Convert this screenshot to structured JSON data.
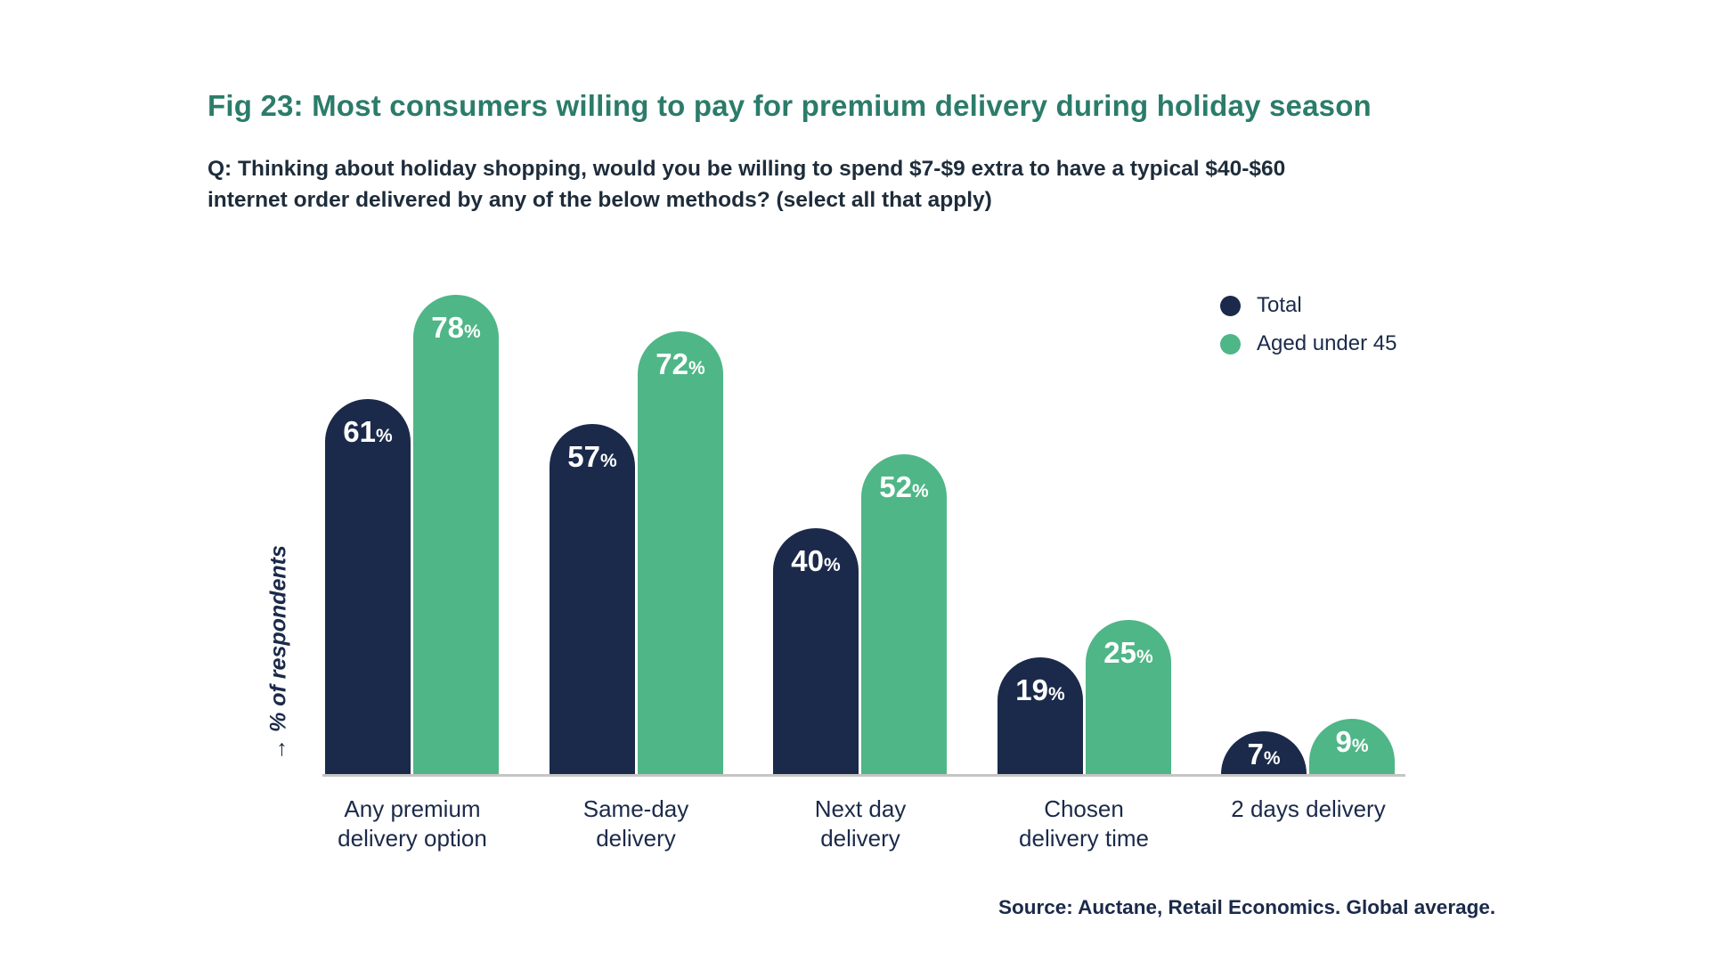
{
  "figure": {
    "title": "Fig 23: Most consumers willing to pay for premium delivery during holiday season",
    "question": {
      "line1": "Q: Thinking about holiday shopping, would you be willing to spend $7-$9 extra to have a typical $40-$60",
      "line2": "internet order delivered by any of the below methods? (select all that apply)"
    },
    "y_axis_label": "→ % of respondents",
    "source": "Source: Auctane, Retail Economics. Global average."
  },
  "legend": {
    "items": [
      {
        "label": "Total",
        "color": "#1b2a4a"
      },
      {
        "label": "Aged under 45",
        "color": "#4fb687"
      }
    ]
  },
  "colors": {
    "background": "#ffffff",
    "title": "#2b7c6a",
    "text": "#1e2c3a",
    "navy": "#1b2a4a",
    "green": "#4fb687",
    "axis_line": "#c5c5c5",
    "value_label": "#ffffff"
  },
  "chart_data": {
    "type": "bar",
    "title": "Fig 23: Most consumers willing to pay for premium delivery during holiday season",
    "subtitle": "Q: Thinking about holiday shopping, would you be willing to spend $7-$9 extra to have a typical $40-$60 internet order delivered by any of the below methods? (select all that apply)",
    "categories": [
      "Any premium delivery option",
      "Same-day delivery",
      "Next day delivery",
      "Chosen delivery time",
      "2 days delivery"
    ],
    "category_lines": [
      [
        "Any premium",
        "delivery option"
      ],
      [
        "Same-day",
        "delivery"
      ],
      [
        "Next day",
        "delivery"
      ],
      [
        "Chosen",
        "delivery time"
      ],
      [
        "2 days delivery"
      ]
    ],
    "series": [
      {
        "name": "Total",
        "color": "#1b2a4a",
        "values": [
          61,
          57,
          40,
          19,
          7
        ]
      },
      {
        "name": "Aged under 45",
        "color": "#4fb687",
        "values": [
          78,
          72,
          52,
          25,
          9
        ]
      }
    ],
    "unit": "%",
    "xlabel": "",
    "ylabel": "% of respondents",
    "ylim": [
      0,
      100
    ],
    "grid": false,
    "legend_position": "top-right",
    "value_labels": "inside-top",
    "bar_shape": "rounded-top",
    "source": "Source: Auctane, Retail Economics. Global average."
  }
}
